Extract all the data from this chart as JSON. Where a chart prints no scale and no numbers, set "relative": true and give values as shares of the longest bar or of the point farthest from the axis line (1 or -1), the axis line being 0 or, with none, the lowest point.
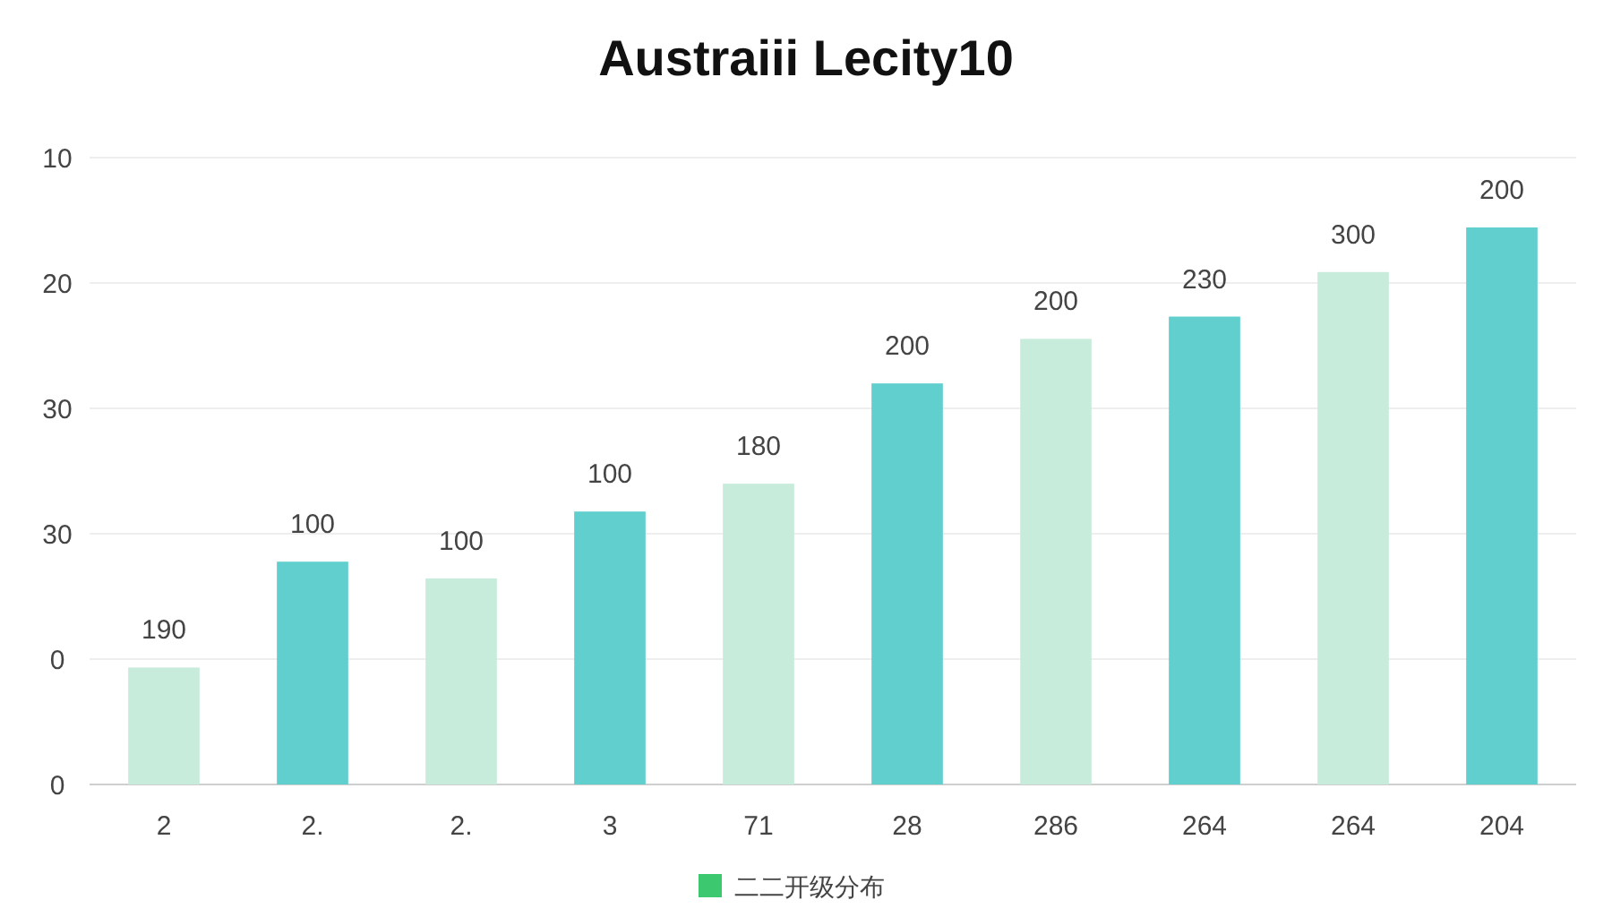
{
  "chart_data": {
    "type": "bar",
    "title": "Austraiii Lecity10",
    "relative": true,
    "categories": [
      "2",
      "2.",
      "2.",
      "3",
      "71",
      "28",
      "286",
      "264",
      "264",
      "204"
    ],
    "series": [
      {
        "name": "二二开级分布",
        "color": "#3cc86e",
        "colors": [
          "#c8ecdc",
          "#62cfcf",
          "#c8ecdc",
          "#62cfcf",
          "#c8ecdc",
          "#62cfcf",
          "#c8ecdc",
          "#62cfcf",
          "#c8ecdc",
          "#62cfcf"
        ],
        "values": [
          0.21,
          0.4,
          0.37,
          0.49,
          0.54,
          0.72,
          0.8,
          0.84,
          0.92,
          1
        ]
      }
    ],
    "annotations": [
      "190",
      "100",
      "100",
      "100",
      "180",
      "200",
      "200",
      "230",
      "300",
      "200",
      "0",
      "0",
      "30",
      "30",
      "20",
      "10"
    ],
    "grid": "y",
    "legend": "bottom"
  }
}
